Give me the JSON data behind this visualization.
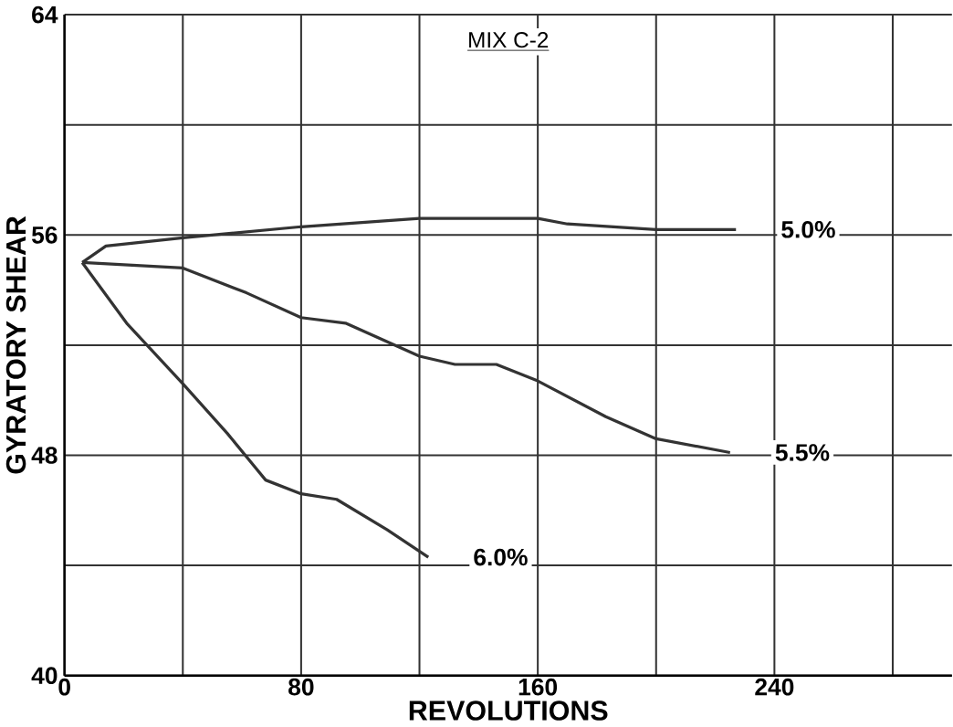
{
  "chart_data": {
    "type": "line",
    "title": "MIX C-2",
    "xlabel": "REVOLUTIONS",
    "ylabel": "GYRATORY SHEAR",
    "xlim": [
      0,
      300
    ],
    "ylim": [
      40,
      64
    ],
    "xticks": [
      0,
      {
        "value": 40,
        "label": null
      },
      80,
      {
        "value": 120,
        "label": null
      },
      160,
      {
        "value": 200,
        "label": null
      },
      240,
      {
        "value": 280,
        "label": null
      }
    ],
    "yticks": [
      40,
      {
        "value": 44,
        "label": null
      },
      48,
      {
        "value": 52,
        "label": null
      },
      56,
      {
        "value": 60,
        "label": null
      },
      64
    ],
    "grid": true,
    "line_style": "solid",
    "series": [
      {
        "name": "5.0%",
        "color": "#333333",
        "x": [
          6,
          14,
          40,
          80,
          120,
          160,
          170,
          200,
          227
        ],
        "values": [
          55.0,
          55.6,
          55.9,
          56.3,
          56.6,
          56.6,
          56.4,
          56.2,
          56.2
        ]
      },
      {
        "name": "5.5%",
        "color": "#333333",
        "x": [
          6,
          40,
          61.5,
          80,
          95,
          120,
          132,
          146,
          160,
          183,
          200,
          225
        ],
        "values": [
          55.0,
          54.8,
          53.9,
          53.0,
          52.8,
          51.6,
          51.3,
          51.3,
          50.7,
          49.4,
          48.6,
          48.1
        ]
      },
      {
        "name": "6.0%",
        "color": "#333333",
        "x": [
          6,
          21,
          40,
          55,
          68,
          80,
          92,
          109,
          123
        ],
        "values": [
          55.0,
          52.8,
          50.6,
          48.8,
          47.1,
          46.6,
          46.4,
          45.3,
          44.3
        ]
      }
    ]
  }
}
